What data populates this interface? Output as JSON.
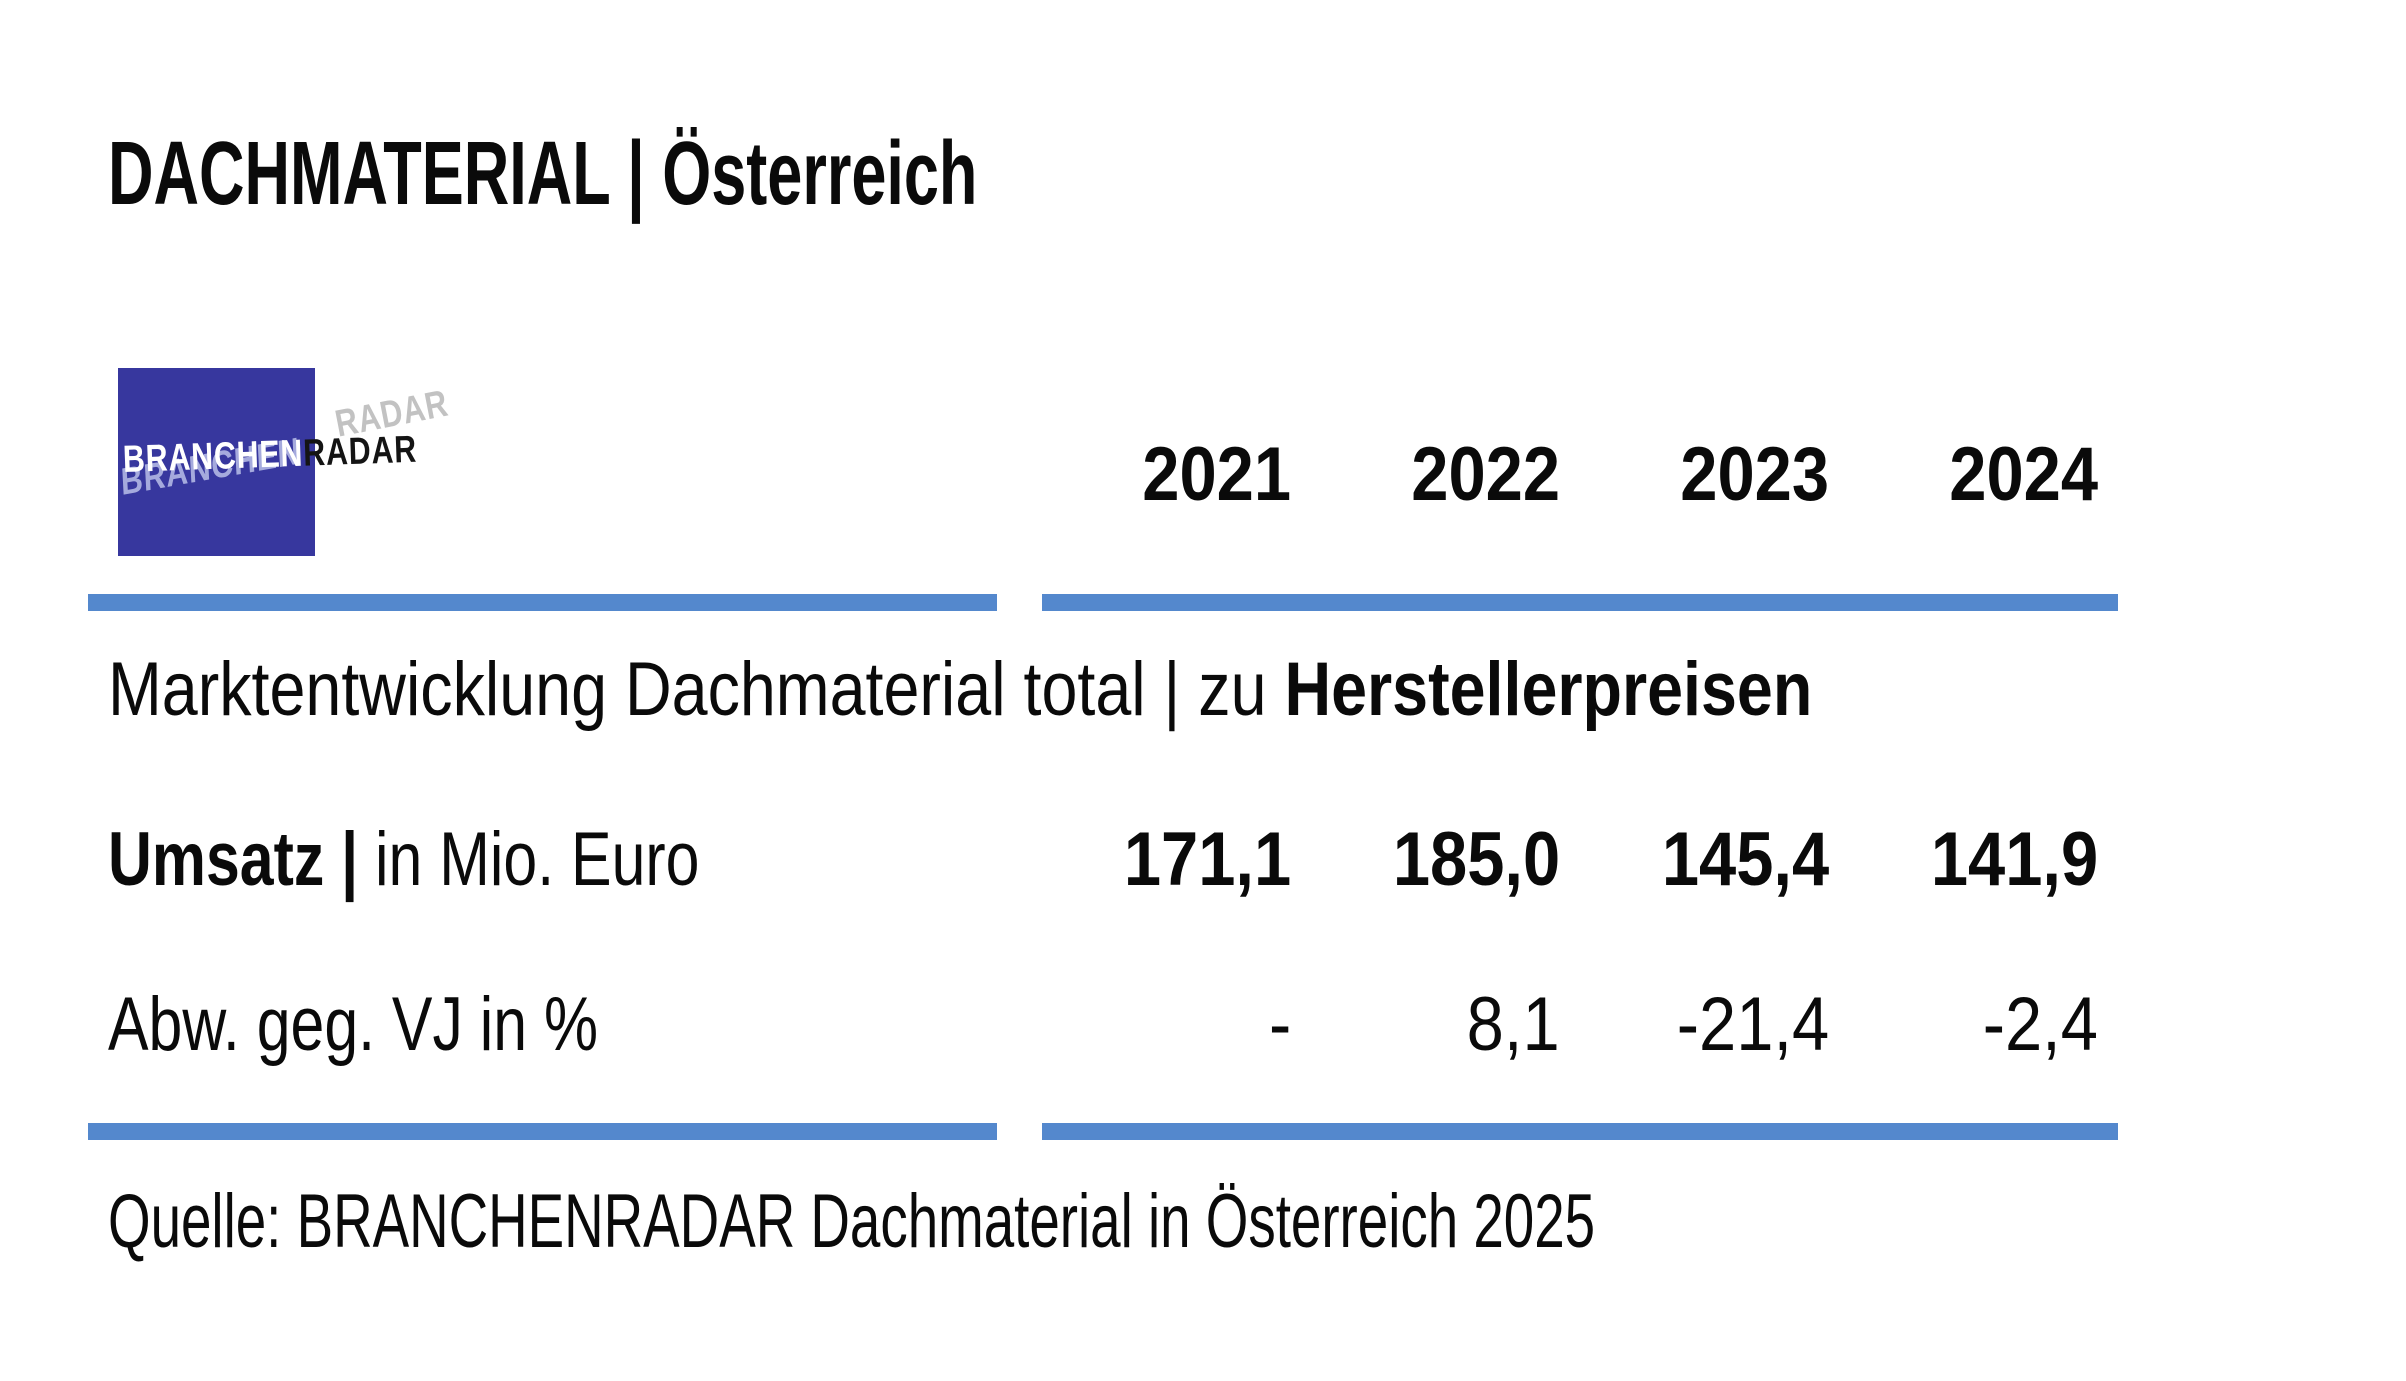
{
  "title": "DACHMATERIAL | Österreich",
  "logo": {
    "text_primary": "BRANCHEN",
    "text_secondary": "RADAR"
  },
  "table": {
    "years": [
      "2021",
      "2022",
      "2023",
      "2024"
    ],
    "section_title": {
      "regular": "Marktentwicklung Dachmaterial total | zu ",
      "bold": "Herstellerpreisen"
    },
    "rows": [
      {
        "label_bold": "Umsatz | ",
        "label_regular": "in Mio. Euro",
        "values": [
          "171,1",
          "185,0",
          "145,4",
          "141,9"
        ]
      },
      {
        "label_bold": "",
        "label_regular": "Abw. geg. VJ in %",
        "values": [
          "-",
          "8,1",
          "-21,4",
          "-2,4"
        ]
      }
    ]
  },
  "source": "Quelle: BRANCHENRADAR Dachmaterial in Österreich 2025",
  "colors": {
    "accent_blue": "#5488CD",
    "logo_blue": "#37379E",
    "text_black": "#0a0a0a"
  }
}
